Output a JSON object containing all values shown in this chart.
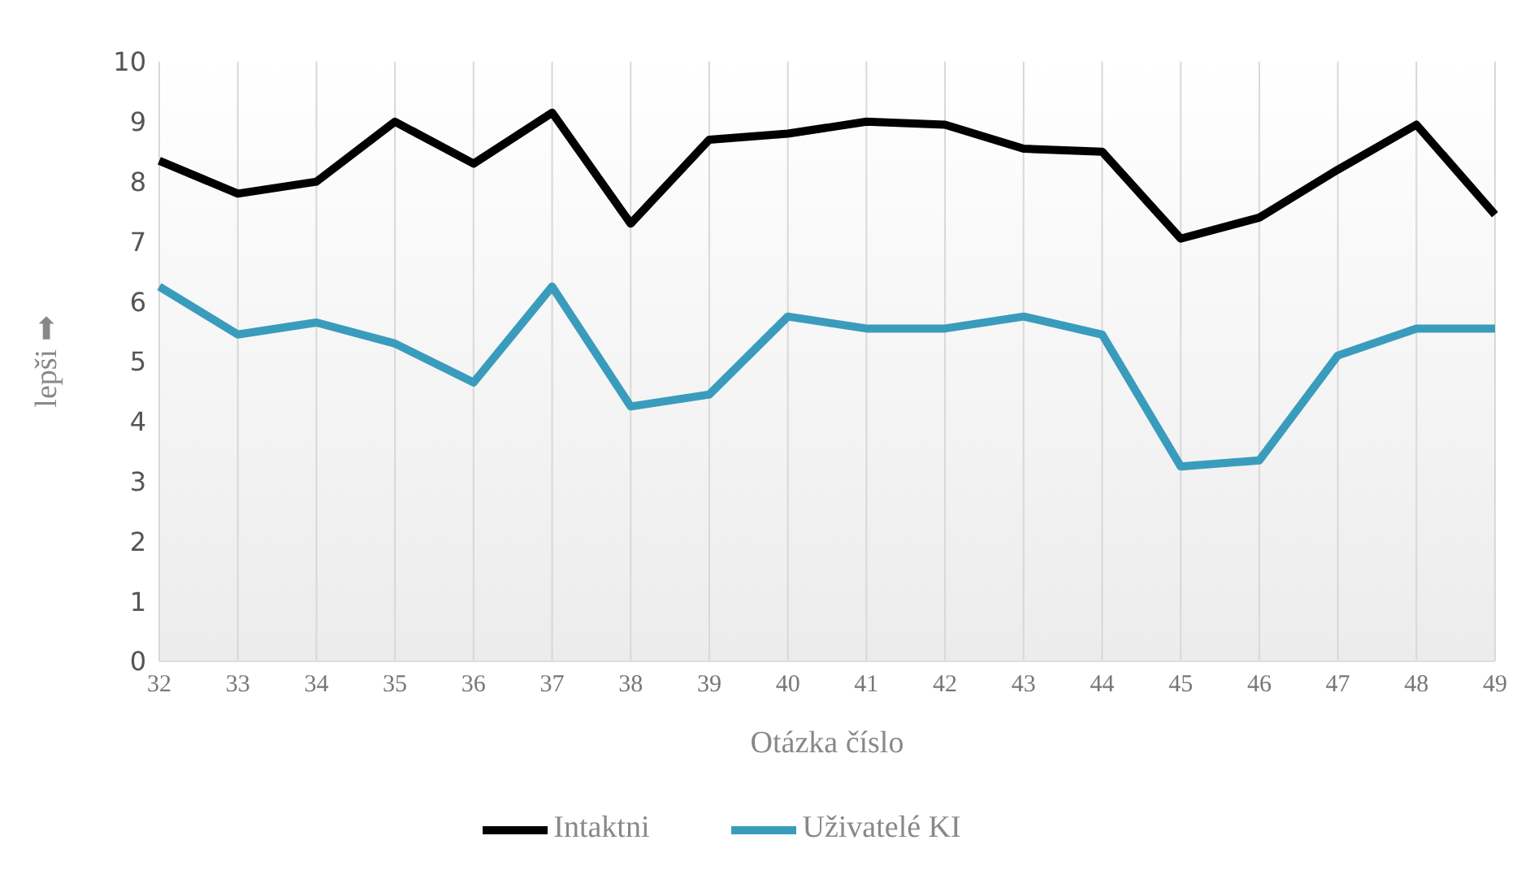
{
  "chart_data": {
    "type": "line",
    "xlabel": "Otázka číslo",
    "ylabel": "lepši ➡",
    "categories": [
      "32",
      "33",
      "34",
      "35",
      "36",
      "37",
      "38",
      "39",
      "40",
      "41",
      "42",
      "43",
      "44",
      "45",
      "46",
      "47",
      "48",
      "49"
    ],
    "series": [
      {
        "name": "Intaktni",
        "color": "#000000",
        "values": [
          8.35,
          7.8,
          8.0,
          9.0,
          8.3,
          9.15,
          7.3,
          8.7,
          8.8,
          9.0,
          8.95,
          8.55,
          8.5,
          7.05,
          7.4,
          8.2,
          8.95,
          7.45
        ]
      },
      {
        "name": "Uživatelé KI",
        "color": "#3a9cbc",
        "values": [
          6.25,
          5.45,
          5.65,
          5.3,
          4.65,
          6.25,
          4.25,
          4.45,
          5.75,
          5.55,
          5.55,
          5.75,
          5.45,
          3.25,
          3.35,
          5.1,
          5.55,
          5.55
        ]
      }
    ],
    "ylim": [
      0,
      10
    ],
    "yticks": [
      0,
      1,
      2,
      3,
      4,
      5,
      6,
      7,
      8,
      9,
      10
    ],
    "grid": "x",
    "legend": "bottom",
    "marker": "none",
    "line_style": "solid"
  }
}
